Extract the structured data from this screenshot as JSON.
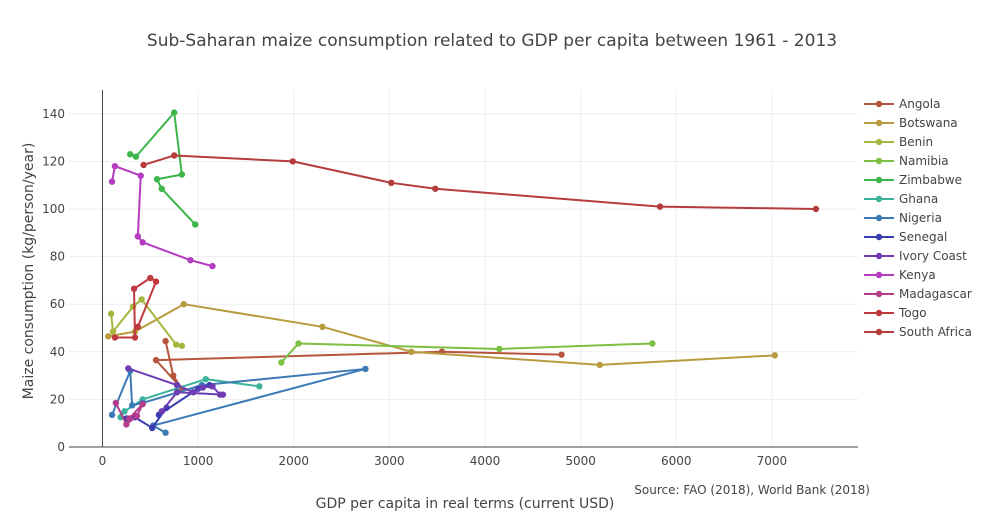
{
  "chart_data": {
    "type": "line",
    "title": "Sub-Saharan maize consumption related to GDP per capita between 1961 - 2013",
    "xlabel": "GDP per capita in real terms (current USD)",
    "ylabel": "Maize consumption (kg/person/year)",
    "source": "Source: FAO (2018), World Bank (2018)",
    "xlim": [
      -350,
      7900
    ],
    "ylim": [
      0,
      150
    ],
    "xticks": [
      0,
      1000,
      2000,
      3000,
      4000,
      5000,
      6000,
      7000
    ],
    "yticks": [
      0,
      20,
      40,
      60,
      80,
      100,
      120,
      140
    ],
    "grid": true,
    "legend_position": "right",
    "series": [
      {
        "name": "Angola",
        "color": "#b5553c",
        "points": [
          [
            660,
            44.5
          ],
          [
            740,
            30
          ],
          [
            830,
            24.5
          ],
          [
            560,
            36.5
          ],
          [
            3550,
            40
          ],
          [
            4800,
            38.8
          ]
        ]
      },
      {
        "name": "Botswana",
        "color": "#b89b3e",
        "points": [
          [
            60,
            46.5
          ],
          [
            340,
            48.5
          ],
          [
            850,
            60
          ],
          [
            2300,
            50.5
          ],
          [
            3230,
            40
          ],
          [
            5200,
            34.5
          ],
          [
            7030,
            38.5
          ]
        ]
      },
      {
        "name": "Benin",
        "color": "#a6b63f",
        "points": [
          [
            90,
            56
          ],
          [
            110,
            48.5
          ],
          [
            320,
            59
          ],
          [
            410,
            62
          ],
          [
            770,
            43
          ],
          [
            830,
            42.5
          ]
        ]
      },
      {
        "name": "Namibia",
        "color": "#7cbf42",
        "points": [
          [
            1870,
            35.5
          ],
          [
            2050,
            43.5
          ],
          [
            4150,
            41.2
          ],
          [
            5750,
            43.5
          ]
        ]
      },
      {
        "name": "Zimbabwe",
        "color": "#3cb54a",
        "points": [
          [
            290,
            123
          ],
          [
            350,
            122
          ],
          [
            750,
            140.5
          ],
          [
            830,
            114.5
          ],
          [
            570,
            112.5
          ],
          [
            620,
            108.5
          ],
          [
            970,
            93.5
          ]
        ]
      },
      {
        "name": "Ghana",
        "color": "#3bb39a",
        "points": [
          [
            190,
            12.5
          ],
          [
            230,
            15
          ],
          [
            420,
            20
          ],
          [
            1080,
            28.5
          ],
          [
            1640,
            25.5
          ]
        ]
      },
      {
        "name": "Nigeria",
        "color": "#3c7ab5",
        "points": [
          [
            100,
            13.5
          ],
          [
            290,
            32
          ],
          [
            310,
            17.5
          ],
          [
            420,
            18.5
          ],
          [
            1040,
            26
          ],
          [
            2750,
            32.8
          ],
          [
            530,
            9
          ],
          [
            660,
            6
          ]
        ]
      },
      {
        "name": "Senegal",
        "color": "#3a3db0",
        "points": [
          [
            250,
            12
          ],
          [
            340,
            12.5
          ],
          [
            520,
            8
          ],
          [
            670,
            16.5
          ],
          [
            590,
            13.5
          ],
          [
            1000,
            24.5
          ],
          [
            1120,
            26
          ]
        ]
      },
      {
        "name": "Ivory Coast",
        "color": "#6e3cb3",
        "points": [
          [
            270,
            33
          ],
          [
            780,
            26
          ],
          [
            950,
            23
          ],
          [
            1050,
            25
          ],
          [
            1150,
            25.5
          ],
          [
            1230,
            22
          ],
          [
            1260,
            22
          ],
          [
            780,
            23
          ],
          [
            620,
            15
          ]
        ]
      },
      {
        "name": "Kenya",
        "color": "#b33cc0",
        "points": [
          [
            100,
            111.5
          ],
          [
            130,
            118
          ],
          [
            400,
            114
          ],
          [
            370,
            88.5
          ],
          [
            420,
            86
          ],
          [
            920,
            78.5
          ],
          [
            1150,
            76
          ]
        ]
      },
      {
        "name": "Madagascar",
        "color": "#b53c8c",
        "points": [
          [
            140,
            18.5
          ],
          [
            250,
            9.5
          ],
          [
            360,
            13
          ],
          [
            420,
            18
          ],
          [
            280,
            12
          ]
        ]
      },
      {
        "name": "Togo",
        "color": "#c0393f",
        "points": [
          [
            130,
            46
          ],
          [
            340,
            46
          ],
          [
            330,
            66.5
          ],
          [
            500,
            71
          ],
          [
            560,
            69.5
          ],
          [
            370,
            50.5
          ]
        ]
      },
      {
        "name": "South Africa",
        "color": "#b53c3c",
        "points": [
          [
            430,
            118.5
          ],
          [
            750,
            122.5
          ],
          [
            1990,
            120
          ],
          [
            3020,
            111
          ],
          [
            3480,
            108.5
          ],
          [
            5830,
            101
          ],
          [
            7460,
            100
          ]
        ]
      }
    ]
  }
}
